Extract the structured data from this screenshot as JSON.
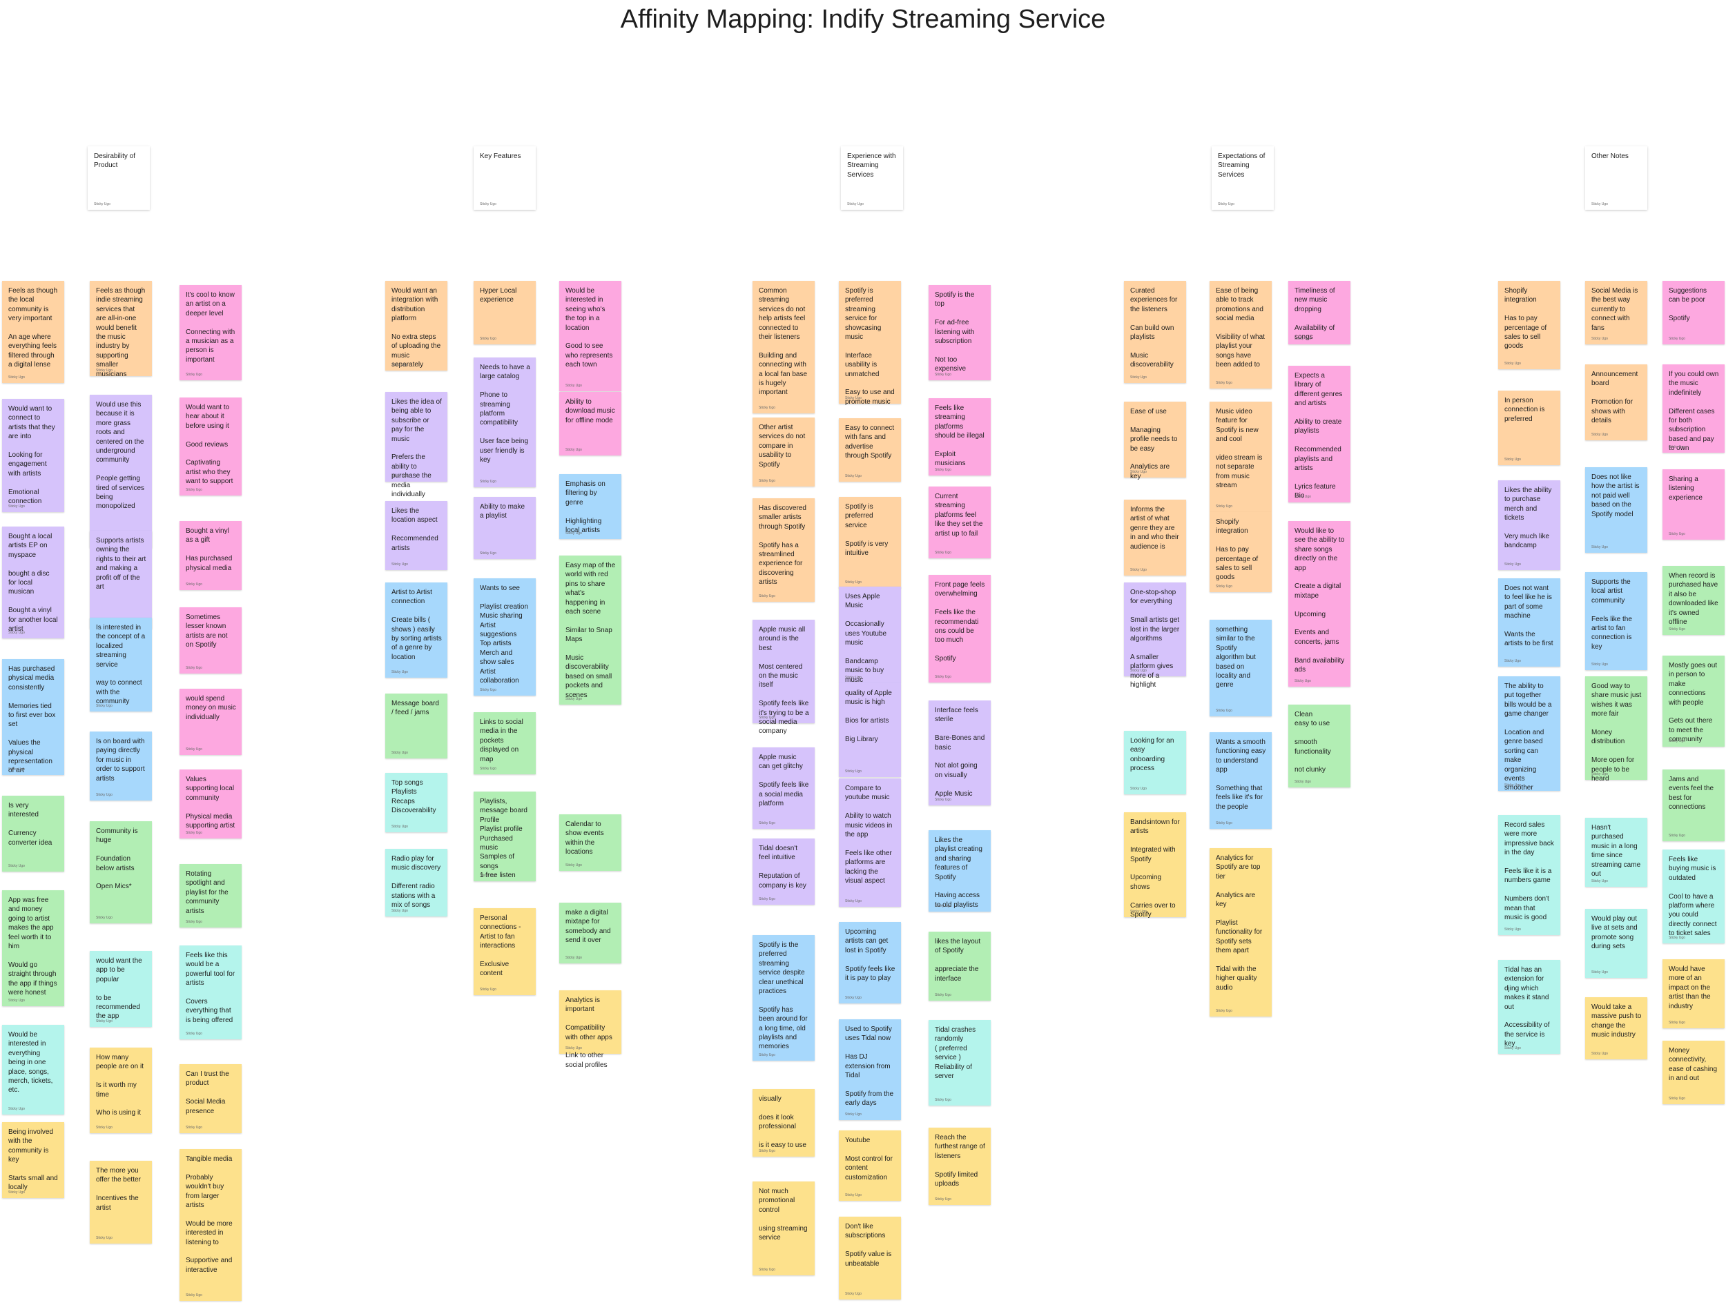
{
  "title": "Affinity Mapping: Indify Streaming Service",
  "author_label": "Sticky Ugo",
  "colors": {
    "orange": "#ffd3a3",
    "purple": "#d6c3fb",
    "blue": "#a7d8fc",
    "green": "#b2eeb4",
    "cyan": "#b4f4ec",
    "yellow": "#fde18c",
    "pink": "#fda8e0",
    "header": "#ffffff"
  },
  "headers": [
    "Desirability of Product",
    "Key Features",
    "Experience with Streaming Services",
    "Expectations of Streaming Services",
    "Other Notes"
  ],
  "columns": [
    {
      "notes": [
        {
          "color": "orange",
          "text": "Feels as though the local community is very important\n\nAn age where everything feels filtered through a digital lense"
        },
        {
          "color": "purple",
          "text": "Would want to connect to artists that they are into\n\nLooking for engagement with artists\n\nEmotional connection"
        },
        {
          "color": "purple",
          "text": "Bought a local artists EP on myspace\n\nbought a disc for local musican\n\nBought a vinyl for another local artist"
        },
        {
          "color": "blue",
          "text": "Has purchased physical media consistently\n\nMemories tied to first ever box set\n\nValues the physical representation of art"
        },
        {
          "color": "green",
          "text": "Is very interested\n\nCurrency converter idea"
        },
        {
          "color": "green",
          "text": "App was free and money going to artist makes the app feel worth it to him\n\nWould go straight through the app if things were honest"
        },
        {
          "color": "cyan",
          "text": "Would be interested in everything being in one place, songs, merch, tickets, etc."
        },
        {
          "color": "yellow",
          "text": "Being involved with the community is key\n\nStarts small and locally"
        }
      ]
    },
    {
      "notes": [
        {
          "color": "orange",
          "text": "Feels as though indie streaming services that are all-in-one would benefit the music industry by supporting smaller musicians"
        },
        {
          "color": "purple",
          "text": "Would use this because it is more grass roots and centered on the underground community\n\nPeople getting tired of services being monopolized"
        },
        {
          "color": "purple",
          "text": "Supports artists owning the rights to their art and making a profit off of the art"
        },
        {
          "color": "blue",
          "text": "Is interested in the concept of a localized streaming service\n\nway to connect with the community"
        },
        {
          "color": "blue",
          "text": "Is on board with paying directly for music in order to support artists"
        },
        {
          "color": "green",
          "text": "Community is huge\n\nFoundation below artists\n\nOpen Mics*"
        },
        {
          "color": "cyan",
          "text": "would want the app to be popular\n\nto be recommended the app"
        },
        {
          "color": "yellow",
          "text": "How many people are on it\n\nIs it worth my time\n\nWho is using it"
        },
        {
          "color": "yellow",
          "text": "The more you offer the better\n\nIncentives the artist"
        }
      ]
    },
    {
      "notes": [
        {
          "color": "pink",
          "text": "It's cool to know an artist on a deeper level\n\nConnecting with a musician as a person is important"
        },
        {
          "color": "pink",
          "text": "Would want to hear about it before using it\n\nGood reviews\n\nCaptivating artist who they want to support"
        },
        {
          "color": "pink",
          "text": "Bought a vinyl as a gift\n\nHas purchased physical media"
        },
        {
          "color": "pink",
          "text": "Sometimes lesser known artists are not on Spotify"
        },
        {
          "color": "pink",
          "text": "would spend money on music individually"
        },
        {
          "color": "pink",
          "text": "Values supporting local community\n\nPhysical media supporting artist"
        },
        {
          "color": "green",
          "text": "Rotating spotlight and playlist for the community artists"
        },
        {
          "color": "cyan",
          "text": "Feels like this would be a powerful tool for artists\n\nCovers everything that is being offered"
        },
        {
          "color": "yellow",
          "text": "Can I trust the product\n\nSocial Media presence"
        },
        {
          "color": "yellow",
          "text": "Tangible media\n\nProbably wouldn't buy from larger artists\n\nWould be more interested in listening to\n\nSupportive and interactive"
        }
      ]
    },
    {
      "notes": [
        {
          "color": "orange",
          "text": "Would want an integration with distribution platform\n\nNo extra steps of uploading the music separately"
        },
        {
          "color": "purple",
          "text": "Likes the idea of being able to subscribe or pay for the music\n\nPrefers the ability to purchase the media individually"
        },
        {
          "color": "purple",
          "text": "Likes the location aspect\n\nRecommended artists"
        },
        {
          "color": "blue",
          "text": "Artist to Artist connection\n\nCreate bills ( shows ) easily by sorting artists of a genre by location"
        },
        {
          "color": "green",
          "text": "Message board / feed / jams"
        },
        {
          "color": "cyan",
          "text": "Top songs\nPlaylists\nRecaps\nDiscoverability"
        },
        {
          "color": "cyan",
          "text": "Radio play for music discovery\n\nDifferent radio stations with a mix of songs"
        }
      ]
    },
    {
      "notes": [
        {
          "color": "orange",
          "text": "Hyper Local experience"
        },
        {
          "color": "purple",
          "text": "Needs to have a large catalog\n\nPhone to streaming platform compatibility\n\nUser face being user friendly is key"
        },
        {
          "color": "purple",
          "text": "Ability to make a playlist"
        },
        {
          "color": "blue",
          "text": "Wants to see\n\nPlaylist creation\nMusic sharing\nArtist suggestions\nTop artists\nMerch and show sales\nArtist collaboration"
        },
        {
          "color": "green",
          "text": "Links to social media in the pockets displayed on map"
        },
        {
          "color": "green",
          "text": "Playlists, message board\nProfile\nPlaylist profile\nPurchased music\nSamples of songs\n1 free listen"
        },
        {
          "color": "yellow",
          "text": "Personal connections - Artist to fan interactions\n\nExclusive content"
        }
      ]
    },
    {
      "notes": [
        {
          "color": "pink",
          "text": "Would be interested in seeing who's the top in a location\n\nGood to see who represents each town"
        },
        {
          "color": "pink",
          "text": "Ability to download music for offline mode"
        },
        {
          "color": "blue",
          "text": "Emphasis on filtering by genre\n\nHighlighting local artists"
        },
        {
          "color": "green",
          "text": "Easy map of the world with red pins to share what's happening in each scene\n\nSimilar to Snap Maps\n\nMusic discoverability based on small pockets and scenes"
        },
        {
          "color": "green",
          "text": "Calendar to show events within the locations"
        },
        {
          "color": "green",
          "text": "make a digital mixtape for somebody and send it over"
        },
        {
          "color": "yellow",
          "text": "Analytics is important\n\nCompatibility with other apps\n\nLink to other social profiles"
        }
      ]
    },
    {
      "notes": [
        {
          "color": "orange",
          "text": "Common streaming services do not help artists feel connected to their listeners\n\nBuilding and connecting with a local fan base is hugely important"
        },
        {
          "color": "orange",
          "text": "Other artist services do not compare in usability to Spotify"
        },
        {
          "color": "orange",
          "text": "Has discovered smaller artists through Spotify\n\nSpotify has a streamlined experience for discovering artists"
        },
        {
          "color": "purple",
          "text": "Apple music all around is the best\n\nMost centered on the music itself\n\nSpotify feels like it's trying to be a social media company"
        },
        {
          "color": "purple",
          "text": "Apple music can get glitchy\n\nSpotify feels like a social media platform"
        },
        {
          "color": "purple",
          "text": "Tidal doesn't feel intuitive\n\nReputation of company is key"
        },
        {
          "color": "blue",
          "text": "Spotify is the preferred streaming service despite clear unethical practices\n\nSpotify has been around for a long time, old playlists and memories"
        },
        {
          "color": "yellow",
          "text": "visually\n\ndoes it look professional\n\nis it easy to use"
        },
        {
          "color": "yellow",
          "text": "Not much promotional control\n\nusing streaming service"
        }
      ]
    },
    {
      "notes": [
        {
          "color": "orange",
          "text": "Spotify is preferred streaming service for showcasing music\n\nInterface usability is unmatched\n\nEasy to use and promote music"
        },
        {
          "color": "orange",
          "text": "Easy to connect with fans and advertise through Spotify"
        },
        {
          "color": "orange",
          "text": "Spotify is preferred service\n\nSpotify is very intuitive"
        },
        {
          "color": "purple",
          "text": "Uses Apple Music\n\nOccasionally uses Youtube music\n\nBandcamp music to buy music"
        },
        {
          "color": "purple",
          "text": "quality of Apple music is high\n\nBios for artists\n\nBig Library"
        },
        {
          "color": "purple",
          "text": "Compare to youtube music\n\nAbility to watch music videos in the app\n\nFeels like other platforms are lacking the visual aspect"
        },
        {
          "color": "blue",
          "text": "Upcoming artists can get lost in Spotify\n\nSpotify feels like it is pay to play"
        },
        {
          "color": "blue",
          "text": "Used to Spotify uses Tidal now\n\nHas DJ extension from Tidal\n\nSpotify from the early days"
        },
        {
          "color": "yellow",
          "text": "Youtube\n\nMost control for content customization"
        },
        {
          "color": "yellow",
          "text": "Don't like subscriptions\n\nSpotify value is unbeatable"
        }
      ]
    },
    {
      "notes": [
        {
          "color": "pink",
          "text": "Spotify is the top\n\nFor ad-free listening with subscription\n\nNot too expensive"
        },
        {
          "color": "pink",
          "text": "Feels like streaming platforms should be illegal\n\nExploit musicians"
        },
        {
          "color": "pink",
          "text": "Current streaming platforms feel like they set the artist up to fail"
        },
        {
          "color": "pink",
          "text": "Front page feels overwhelming\n\nFeels like the recommendati ons could be too much\n\nSpotify"
        },
        {
          "color": "purple",
          "text": "Interface feels sterile\n\nBare-Bones and basic\n\nNot alot going on visually\n\nApple Music"
        },
        {
          "color": "blue",
          "text": "Likes the playlist creating and sharing features of Spotify\n\nHaving access to old playlists"
        },
        {
          "color": "green",
          "text": "likes the layout of Spotify\n\nappreciate the interface"
        },
        {
          "color": "cyan",
          "text": "Tidal crashes randomly\n( preferred service )\nReliability of server"
        },
        {
          "color": "yellow",
          "text": "Reach the furthest range of listeners\n\nSpotify limited uploads"
        }
      ]
    },
    {
      "notes": [
        {
          "color": "orange",
          "text": "Curated experiences for the listeners\n\nCan build own playlists\n\nMusic discoverability"
        },
        {
          "color": "orange",
          "text": "Ease of use\n\nManaging profile needs to be easy\n\nAnalytics are key"
        },
        {
          "color": "orange",
          "text": "Informs the artist of what genre they are in and who their audience is"
        },
        {
          "color": "purple",
          "text": "One-stop-shop for everything\n\nSmall artists get lost in the larger algorithms\n\nA smaller platform gives more of a highlight"
        },
        {
          "color": "cyan",
          "text": "Looking for an easy onboarding process"
        },
        {
          "color": "yellow",
          "text": "Bandsintown for artists\n\nIntegrated with Spotify\n\nUpcoming shows\n\nCarries over to Spotify"
        }
      ]
    },
    {
      "notes": [
        {
          "color": "orange",
          "text": "Ease of being able to track promotions and social media\n\nVisibility of what playlist your songs have been added to"
        },
        {
          "color": "orange",
          "text": "Music video feature for Spotify is new and cool\n\nvideo stream is not separate from music stream"
        },
        {
          "color": "orange",
          "text": "Shopify integration\n\nHas to pay percentage of sales to sell goods"
        },
        {
          "color": "blue",
          "text": "something similar to the Spotify algorithm but based on locality and genre"
        },
        {
          "color": "blue",
          "text": "Wants a smooth functioning easy to understand app\n\nSomething that feels like it's for the people"
        },
        {
          "color": "yellow",
          "text": "Analytics for Spotify are top tier\n\nAnalytics are key\n\nPlaylist functionality for Spotify sets them apart\n\nTidal with the higher quality audio"
        }
      ]
    },
    {
      "notes": [
        {
          "color": "pink",
          "text": "Timeliness of new music dropping\n\nAvailability of songs"
        },
        {
          "color": "pink",
          "text": "Expects a library of different genres and artists\n\nAbility to create playlists\n\nRecommended playlists and artists\n\nLyrics feature Bio"
        },
        {
          "color": "pink",
          "text": "Would like to see the ability to share songs directly on the app\n\nCreate a digital mixtape\n\nUpcoming\n\nEvents and concerts, jams\n\nBand availability ads"
        },
        {
          "color": "green",
          "text": "Clean\neasy to use\n\nsmooth functionality\n\nnot clunky"
        }
      ]
    },
    {
      "notes": [
        {
          "color": "orange",
          "text": "Shopify integration\n\nHas to pay percentage of sales to sell goods"
        },
        {
          "color": "orange",
          "text": "In person connection is preferred"
        },
        {
          "color": "purple",
          "text": "Likes the ability to purchase merch and tickets\n\nVery much like bandcamp"
        },
        {
          "color": "blue",
          "text": "Does not want to feel like he is part of some machine\n\nWants the artists to be first"
        },
        {
          "color": "blue",
          "text": "The ability to put together bills would be a game changer\n\nLocation and genre based sorting can make organizing events smoother"
        },
        {
          "color": "cyan",
          "text": "Record sales were more impressive back in the day\n\nFeels like it is a numbers game\n\nNumbers don't mean that music is good"
        },
        {
          "color": "cyan",
          "text": "Tidal has an extension for djing which makes it stand out\n\nAccessibility of the service is key"
        }
      ]
    },
    {
      "notes": [
        {
          "color": "orange",
          "text": "Social Media is the best way currently to connect with fans"
        },
        {
          "color": "orange",
          "text": "Announcement board\n\nPromotion for shows with details"
        },
        {
          "color": "blue",
          "text": "Does not like how the artist is not paid well based on the Spotify model"
        },
        {
          "color": "blue",
          "text": "Supports the local artist community\n\nFeels like the artist to fan connection is key"
        },
        {
          "color": "green",
          "text": "Good way to share music just wishes it was more fair\n\nMoney distribution\n\nMore open for people to be heard"
        },
        {
          "color": "cyan",
          "text": "Hasn't purchased music in a long time since streaming came out"
        },
        {
          "color": "cyan",
          "text": "Would play out live at sets and promote song during sets"
        },
        {
          "color": "yellow",
          "text": "Would take a massive push to change the music industry"
        }
      ]
    },
    {
      "notes": [
        {
          "color": "pink",
          "text": "Suggestions can be poor\n\nSpotify"
        },
        {
          "color": "pink",
          "text": "If you could own the music indefinitely\n\nDifferent cases for both subscription based and pay to own"
        },
        {
          "color": "pink",
          "text": "Sharing a listening experience"
        },
        {
          "color": "green",
          "text": "When record is purchased have it also be downloaded like it's owned offline"
        },
        {
          "color": "green",
          "text": "Mostly goes out in person to make connections with people\n\nGets out there to meet the community"
        },
        {
          "color": "green",
          "text": "Jams and events feel the best for connections"
        },
        {
          "color": "cyan",
          "text": "Feels like buying music is outdated\n\nCool to have a platform where you could directly connect to ticket sales"
        },
        {
          "color": "yellow",
          "text": "Would have more of an impact on the artist than the industry"
        },
        {
          "color": "yellow",
          "text": "Money connectivity, ease of cashing in and out"
        }
      ]
    }
  ]
}
